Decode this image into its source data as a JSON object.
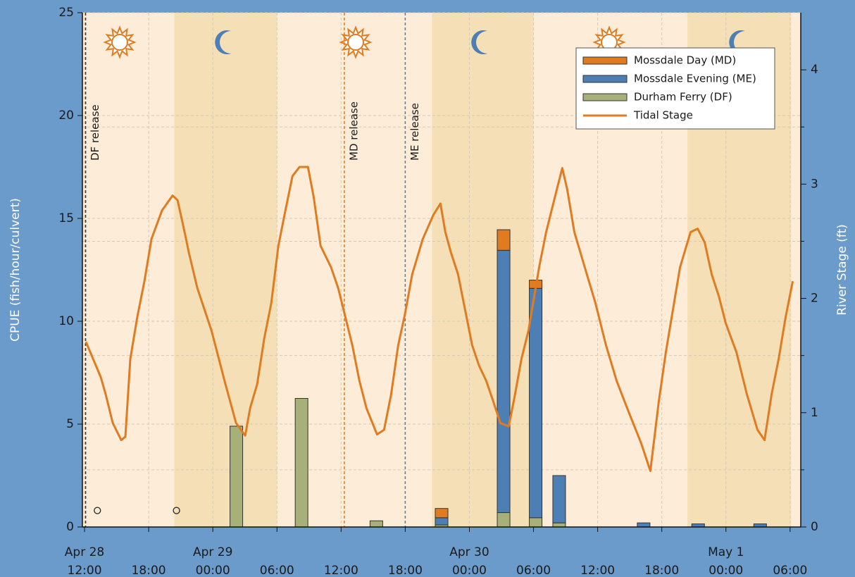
{
  "chart_data": {
    "type": "bar",
    "ylabel": "CPUE (fish/hour/culvert)",
    "y2label": "River Stage (ft)",
    "xlim": [
      11.8,
      79.0
    ],
    "ylim": [
      0,
      25
    ],
    "yticks": [
      0,
      5,
      10,
      15,
      20,
      25
    ],
    "y2lim": [
      0,
      4.5
    ],
    "y2ticks": [
      0,
      1,
      2,
      3,
      4
    ],
    "y2minor": [
      0.5,
      1.5,
      2.5,
      3.5
    ],
    "xticks": [
      {
        "value": 12,
        "label": "12:00"
      },
      {
        "value": 18,
        "label": "18:00"
      },
      {
        "value": 24,
        "label": "00:00"
      },
      {
        "value": 30,
        "label": "06:00"
      },
      {
        "value": 36,
        "label": "12:00"
      },
      {
        "value": 42,
        "label": "18:00"
      },
      {
        "value": 48,
        "label": "00:00"
      },
      {
        "value": 54,
        "label": "06:00"
      },
      {
        "value": 60,
        "label": "12:00"
      },
      {
        "value": 66,
        "label": "18:00"
      },
      {
        "value": 72,
        "label": "00:00"
      },
      {
        "value": 78,
        "label": "06:00"
      }
    ],
    "xdates": [
      {
        "value": 12,
        "label": "Apr 28"
      },
      {
        "value": 24,
        "label": "Apr 29"
      },
      {
        "value": 48,
        "label": "Apr 30"
      },
      {
        "value": 72,
        "label": "May 1"
      }
    ],
    "grid": true,
    "night_periods": [
      [
        20.4,
        30.0
      ],
      [
        44.5,
        54.0
      ],
      [
        68.4,
        78.1
      ]
    ],
    "releases": [
      {
        "x": 12.1,
        "label": "DF release",
        "color": "#333333"
      },
      {
        "x": 36.3,
        "label": "MD release",
        "color": "#e07b20"
      },
      {
        "x": 42.0,
        "label": "ME release",
        "color": "#4d7fb5"
      }
    ],
    "x": [
      26.2,
      32.3,
      39.3,
      45.4,
      51.2,
      54.2,
      56.4,
      64.3,
      69.4,
      75.2
    ],
    "series": [
      {
        "name": "Mossdale Day (MD)",
        "color": "#e07b20",
        "values": [
          0,
          0,
          0,
          0.45,
          1.0,
          0.4,
          0,
          0,
          0,
          0
        ]
      },
      {
        "name": "Mossdale Evening (ME)",
        "color": "#4d7fb5",
        "values": [
          0,
          0,
          0,
          0.35,
          12.75,
          11.15,
          2.3,
          0.2,
          0.15,
          0.15
        ]
      },
      {
        "name": "Durham Ferry (DF)",
        "color": "#a8b07a",
        "values": [
          4.9,
          6.25,
          0.3,
          0.1,
          0.7,
          0.45,
          0.2,
          0,
          0,
          0
        ]
      },
      {
        "name": "Tidal Stage",
        "type": "line",
        "axis": "y2",
        "color": "#e07b20",
        "x": [
          12.13,
          13.52,
          13.98,
          14.64,
          15.43,
          15.82,
          16.28,
          16.94,
          17.6,
          18.26,
          19.25,
          20.24,
          20.7,
          21.36,
          21.76,
          22.55,
          23.87,
          25.18,
          26.17,
          27.03,
          27.49,
          28.15,
          28.81,
          29.47,
          30.13,
          30.79,
          31.45,
          32.11,
          32.9,
          33.43,
          34.08,
          35.07,
          35.73,
          36.39,
          37.05,
          37.71,
          38.37,
          39.36,
          40.02,
          40.68,
          41.34,
          41.99,
          42.65,
          43.64,
          44.63,
          45.29,
          45.75,
          46.28,
          46.94,
          47.6,
          48.26,
          48.91,
          49.57,
          50.23,
          50.89,
          51.68,
          52.21,
          52.87,
          53.53,
          54.52,
          55.18,
          56.17,
          56.69,
          57.16,
          57.82,
          58.8,
          59.79,
          60.78,
          61.77,
          62.76,
          64.08,
          64.93,
          65.72,
          66.38,
          67.04,
          67.7,
          68.69,
          69.35,
          70.01,
          70.67,
          71.33,
          71.99,
          72.98,
          73.96,
          74.95,
          75.61,
          76.27,
          76.93,
          77.59,
          78.25
        ],
        "values": [
          1.62,
          1.31,
          1.16,
          0.91,
          0.76,
          0.79,
          1.47,
          1.84,
          2.15,
          2.52,
          2.77,
          2.9,
          2.86,
          2.58,
          2.4,
          2.09,
          1.72,
          1.25,
          0.91,
          0.8,
          1.04,
          1.25,
          1.65,
          1.96,
          2.46,
          2.77,
          3.07,
          3.15,
          3.15,
          2.89,
          2.46,
          2.27,
          2.09,
          1.84,
          1.59,
          1.28,
          1.04,
          0.81,
          0.85,
          1.16,
          1.59,
          1.87,
          2.21,
          2.52,
          2.73,
          2.83,
          2.58,
          2.4,
          2.21,
          1.9,
          1.59,
          1.41,
          1.28,
          1.1,
          0.91,
          0.88,
          1.13,
          1.47,
          1.72,
          2.27,
          2.58,
          2.95,
          3.14,
          2.95,
          2.58,
          2.27,
          1.96,
          1.59,
          1.28,
          1.04,
          0.73,
          0.49,
          1.1,
          1.53,
          1.9,
          2.27,
          2.58,
          2.61,
          2.49,
          2.21,
          2.02,
          1.78,
          1.53,
          1.16,
          0.85,
          0.76,
          1.16,
          1.47,
          1.84,
          2.15
        ]
      }
    ],
    "stack_order": [
      2,
      1,
      0
    ],
    "open_markers": {
      "x": [
        13.2,
        20.6
      ],
      "values": [
        0.8,
        0.8
      ]
    }
  }
}
